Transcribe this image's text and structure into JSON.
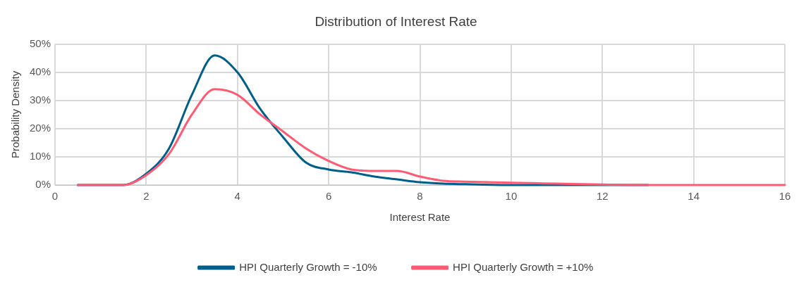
{
  "chart_data": {
    "type": "line",
    "title": "Distribution of Interest Rate",
    "xlabel": "Interest Rate",
    "ylabel": "Probability Density",
    "x": [
      0.5,
      1,
      1.5,
      2,
      2.5,
      3,
      3.5,
      4,
      4.5,
      5,
      5.5,
      6,
      6.5,
      7,
      7.5,
      8,
      8.5,
      9,
      10,
      11,
      12,
      13,
      14,
      15,
      16
    ],
    "series": [
      {
        "name": "HPI Quarterly Growth = -10%",
        "color": "#005f8a",
        "values": [
          0,
          0,
          0,
          4,
          13,
          32,
          46,
          40,
          27,
          17,
          8,
          5.5,
          4.5,
          3,
          2,
          1,
          0.5,
          0.3,
          0,
          0,
          0,
          0,
          null,
          null,
          null
        ]
      },
      {
        "name": "HPI Quarterly Growth = +10%",
        "color": "#fe5a74",
        "values": [
          0,
          0,
          0,
          3.5,
          11,
          25,
          34,
          32,
          25,
          19,
          13,
          8.5,
          5.5,
          5,
          5,
          3,
          1.5,
          1.2,
          0.8,
          0.5,
          0.2,
          0,
          0,
          0,
          0
        ]
      }
    ],
    "xlim": [
      0,
      16
    ],
    "xticks": [
      0,
      2,
      4,
      6,
      8,
      10,
      12,
      14,
      16
    ],
    "ylim": [
      0,
      50
    ],
    "yticks": [
      {
        "value": 0,
        "label": "0%"
      },
      {
        "value": 10,
        "label": "10%"
      },
      {
        "value": 20,
        "label": "20%"
      },
      {
        "value": 30,
        "label": "30%"
      },
      {
        "value": 40,
        "label": "40%"
      },
      {
        "value": 50,
        "label": "50%"
      }
    ],
    "grid": true,
    "legend": "bottom",
    "marker": "none",
    "line_style": "solid"
  }
}
